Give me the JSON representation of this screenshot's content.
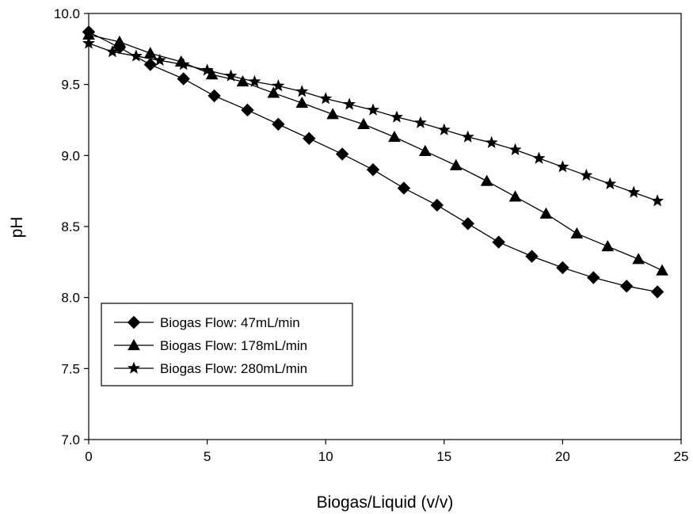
{
  "chart_data": {
    "type": "line",
    "xlabel": "Biogas/Liquid (v/v)",
    "ylabel": "pH",
    "xlim": [
      0,
      25
    ],
    "ylim": [
      7.0,
      10.0
    ],
    "xticks": [
      "0",
      "5",
      "10",
      "15",
      "20",
      "25"
    ],
    "yticks": [
      "7.0",
      "7.5",
      "8.0",
      "8.5",
      "9.0",
      "9.5",
      "10.0"
    ],
    "grid": false,
    "legend_position": "lower-left",
    "series": [
      {
        "name": "Biogas Flow: 47mL/min",
        "marker": "diamond",
        "color": "#000000",
        "x": [
          0,
          1.3,
          2.6,
          4.0,
          5.3,
          6.7,
          8.0,
          9.3,
          10.7,
          12.0,
          13.3,
          14.7,
          16.0,
          17.3,
          18.7,
          20.0,
          21.3,
          22.7,
          24.0
        ],
        "y": [
          9.87,
          9.76,
          9.64,
          9.54,
          9.42,
          9.32,
          9.22,
          9.12,
          9.01,
          8.9,
          8.77,
          8.65,
          8.52,
          8.39,
          8.29,
          8.21,
          8.14,
          8.08,
          8.04
        ]
      },
      {
        "name": "Biogas Flow: 178mL/min",
        "marker": "triangle",
        "color": "#000000",
        "x": [
          0,
          1.3,
          2.6,
          3.9,
          5.2,
          6.5,
          7.8,
          9.0,
          10.3,
          11.6,
          12.9,
          14.2,
          15.5,
          16.8,
          18.0,
          19.3,
          20.6,
          21.9,
          23.2,
          24.2
        ],
        "y": [
          9.85,
          9.8,
          9.72,
          9.66,
          9.57,
          9.52,
          9.44,
          9.37,
          9.29,
          9.22,
          9.13,
          9.03,
          8.93,
          8.82,
          8.71,
          8.59,
          8.45,
          8.36,
          8.27,
          8.19
        ]
      },
      {
        "name": "Biogas Flow: 280mL/min",
        "marker": "star",
        "color": "#000000",
        "x": [
          0,
          1.0,
          2.0,
          3.0,
          4.0,
          5.0,
          6.0,
          7.0,
          8.0,
          9.0,
          10.0,
          11.0,
          12.0,
          13.0,
          14.0,
          15.0,
          16.0,
          17.0,
          18.0,
          19.0,
          20.0,
          21.0,
          22.0,
          23.0,
          24.0
        ],
        "y": [
          9.79,
          9.73,
          9.7,
          9.67,
          9.64,
          9.6,
          9.56,
          9.52,
          9.49,
          9.45,
          9.4,
          9.36,
          9.32,
          9.27,
          9.23,
          9.18,
          9.13,
          9.09,
          9.04,
          8.98,
          8.92,
          8.86,
          8.8,
          8.74,
          8.68
        ]
      }
    ]
  }
}
